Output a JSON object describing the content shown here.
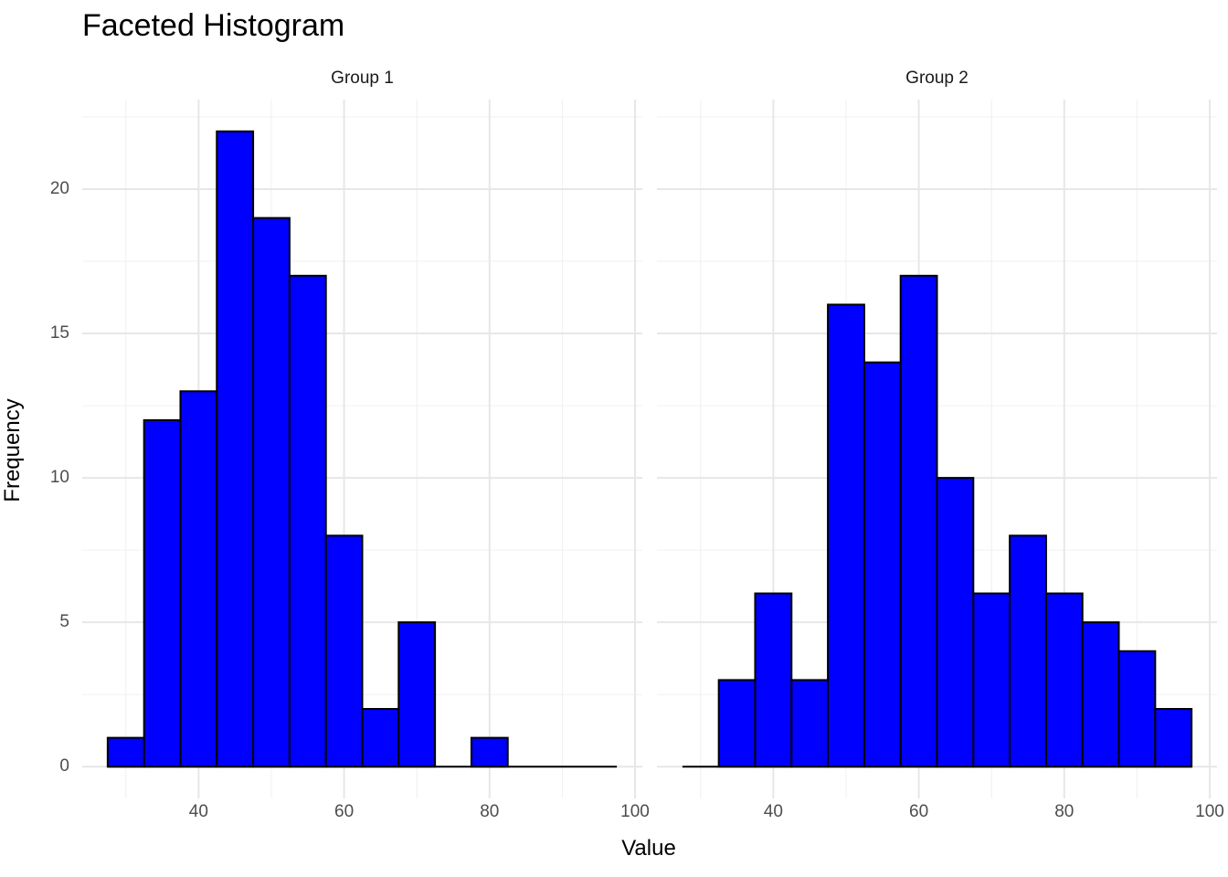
{
  "title": "Faceted Histogram",
  "axes": {
    "x_title": "Value",
    "y_title": "Frequency"
  },
  "chart_data": {
    "type": "bar",
    "subtype": "faceted-histogram",
    "title": "Faceted Histogram",
    "xlabel": "Value",
    "ylabel": "Frequency",
    "bin_start": 27.5,
    "bin_width": 5,
    "facets": [
      {
        "label": "Group 1",
        "counts": [
          1,
          12,
          13,
          22,
          19,
          17,
          8,
          2,
          5,
          0,
          1,
          0,
          0,
          0
        ]
      },
      {
        "label": "Group 2",
        "counts": [
          0,
          3,
          6,
          3,
          16,
          14,
          17,
          10,
          6,
          8,
          6,
          5,
          4,
          2
        ]
      }
    ],
    "x_ticks": [
      40,
      60,
      80,
      100
    ],
    "x_minor_ticks": [
      30,
      50,
      70,
      90
    ],
    "y_ticks": [
      0,
      5,
      10,
      15,
      20
    ],
    "y_minor_ticks": [
      2.5,
      7.5,
      12.5,
      17.5,
      22.5
    ],
    "x_domain": [
      24,
      101
    ],
    "y_domain": [
      -1.1,
      23.1
    ],
    "grid": "on",
    "legend": "none",
    "colors": {
      "bar_fill": "#0000ff",
      "bar_stroke": "#000000",
      "grid_major": "#e7e7e7",
      "grid_minor": "#f0f0f0",
      "tick_label": "#4d4d4d",
      "strip_text": "#1a1a1a",
      "axis_title": "#000000",
      "title": "#000000",
      "background": "#ffffff"
    }
  }
}
